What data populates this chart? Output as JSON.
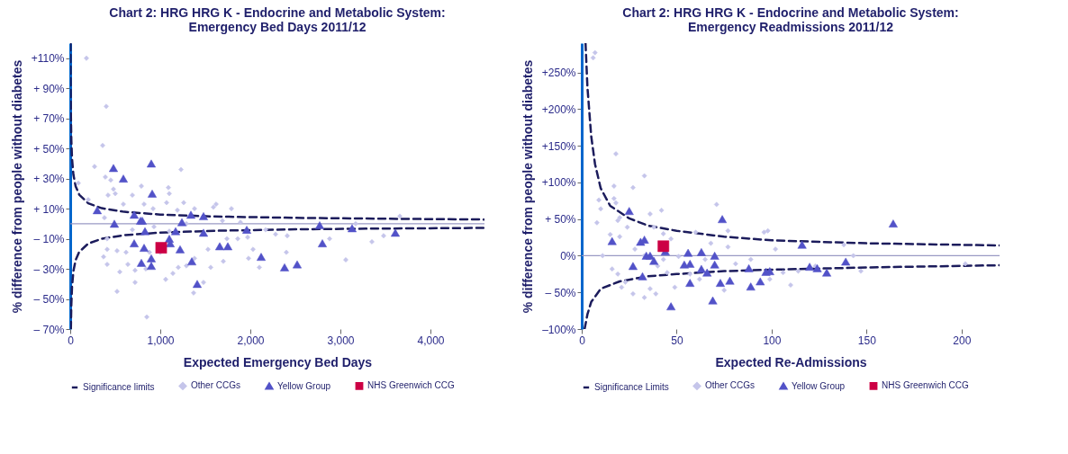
{
  "chart_data": [
    {
      "type": "scatter",
      "title": "Chart 2: HRG HRG K - Endocrine and Metabolic System:\nEmergency Bed Days 2011/12",
      "xlabel": "Expected Emergency Bed Days",
      "ylabel": "% difference from people without diabetes",
      "legend": "bottom",
      "xlim": [
        0,
        4600
      ],
      "xticks": [
        0,
        {
          "value": 1000,
          "label": "1,000"
        },
        {
          "value": 2000,
          "label": "2,000"
        },
        {
          "value": 3000,
          "label": "3,000"
        },
        {
          "value": 4000,
          "label": "4,000"
        }
      ],
      "ylim": [
        -70,
        120
      ],
      "yticks": [
        {
          "value": -70,
          "label": "– 70%"
        },
        {
          "value": -50,
          "label": "– 50%"
        },
        {
          "value": -30,
          "label": "– 30%"
        },
        {
          "value": -10,
          "label": "– 10%"
        },
        {
          "value": 10,
          "label": "+ 10%"
        },
        {
          "value": 30,
          "label": "+ 30%"
        },
        {
          "value": 50,
          "label": "+ 50%"
        },
        {
          "value": 70,
          "label": "+ 70%"
        },
        {
          "value": 90,
          "label": "+ 90%"
        },
        {
          "value": 110,
          "label": "+110%"
        }
      ],
      "ref_lines": [
        {
          "axis": "y",
          "value": 0,
          "color": "#9a9ac4"
        }
      ],
      "series": [
        {
          "name": "Significance limits",
          "type": "line",
          "line_style": "dashed",
          "color": "#1c1c5c",
          "x": [
            2.6,
            4,
            7,
            12,
            20,
            35,
            60,
            100,
            200,
            350,
            600,
            1000,
            1600,
            2500,
            3500,
            4600
          ],
          "values": [
            120,
            96.5,
            73,
            55.7,
            43.2,
            32.6,
            24.9,
            19.3,
            13.6,
            10.3,
            7.9,
            6.1,
            4.8,
            3.9,
            3.3,
            2.8
          ]
        },
        {
          "type": "line",
          "line_style": "dashed",
          "color": "#1c1c5c",
          "x": [
            7.2,
            12,
            20,
            35,
            60,
            100,
            200,
            350,
            600,
            1000,
            1600,
            2500,
            3500,
            4600
          ],
          "values": [
            -70,
            -54,
            -41.8,
            -31.6,
            -24.1,
            -18.7,
            -13.2,
            -10,
            -7.6,
            -5.9,
            -4.7,
            -3.7,
            -3.2,
            -2.8
          ]
        },
        {
          "name": "Other CCGs",
          "type": "scatter",
          "marker": "diamond",
          "color": "#c5c5ea",
          "x": [
            180,
            400,
            360,
            270,
            390,
            450,
            480,
            500,
            420,
            380,
            200,
            90,
            590,
            690,
            790,
            820,
            920,
            1090,
            1100,
            1070,
            1230,
            1260,
            1190,
            1380,
            1620,
            1590,
            1790,
            1890,
            1690,
            410,
            410,
            520,
            370,
            410,
            550,
            520,
            640,
            720,
            720,
            620,
            850,
            840,
            880,
            1000,
            1060,
            1140,
            1200,
            1290,
            1370,
            1480,
            1380,
            1530,
            1560,
            1700,
            1740,
            1860,
            1970,
            1980,
            2030,
            2100,
            2170,
            2280,
            2410,
            2400,
            2880,
            3060,
            3350,
            3480,
            3660,
            3170,
            1100,
            930,
            690,
            1290
          ],
          "values": [
            110,
            78,
            52,
            38,
            31,
            29,
            23,
            20,
            19,
            4,
            16,
            27,
            13,
            19,
            25,
            13,
            10,
            24,
            20,
            14,
            36,
            14,
            9,
            10,
            13,
            11,
            10,
            1,
            2,
            -10,
            -17,
            -18,
            -22,
            -27,
            -32,
            -45,
            -27,
            -39,
            -31,
            -19,
            -62,
            -30,
            -19,
            -19,
            -37,
            -33,
            -29,
            -28,
            -46,
            -39,
            -23,
            -17,
            -29,
            -25,
            -10,
            -10,
            -9,
            -23,
            -17,
            -29,
            -4,
            -7,
            -8,
            -19,
            -10,
            -24,
            -12,
            -8,
            5,
            0,
            -5,
            -2,
            -4,
            0
          ]
        },
        {
          "name": "Yellow Group",
          "type": "scatter",
          "marker": "triangle",
          "color": "#5252c8",
          "x": [
            300,
            480,
            590,
            490,
            710,
            780,
            800,
            830,
            710,
            820,
            790,
            900,
            910,
            900,
            900,
            1100,
            1110,
            1170,
            1220,
            1240,
            1340,
            1350,
            1410,
            1480,
            1480,
            1660,
            1750,
            1960,
            2120,
            2380,
            2520,
            2770,
            2800,
            3130,
            3610
          ],
          "values": [
            9,
            37,
            30,
            0,
            6,
            2,
            2,
            -5,
            -13,
            -16,
            -26,
            40,
            20,
            -23,
            -28,
            -10,
            -13,
            -5,
            -17,
            1,
            6,
            -25,
            -40,
            5,
            -6,
            -15,
            -15,
            -4,
            -22,
            -29,
            -27,
            -1,
            -13,
            -3,
            -6
          ]
        },
        {
          "name": "NHS Greenwich CCG",
          "type": "scatter",
          "marker": "square",
          "color": "#cc0044",
          "x": [
            1010
          ],
          "values": [
            -16
          ]
        }
      ]
    },
    {
      "type": "scatter",
      "title": "Chart 2: HRG HRG K - Endocrine and Metabolic System:\nEmergency Readmissions 2011/12",
      "xlabel": "Expected Re-Admissions",
      "ylabel": "% difference from people without diabetes",
      "legend": "bottom",
      "xlim": [
        0,
        220
      ],
      "xticks": [
        0,
        50,
        100,
        150,
        200
      ],
      "ylim": [
        -100,
        290
      ],
      "yticks": [
        {
          "value": -100,
          "label": "–100%"
        },
        {
          "value": -50,
          "label": "– 50%"
        },
        {
          "value": 0,
          "label": "0%"
        },
        {
          "value": 50,
          "label": "+ 50%"
        },
        {
          "value": 100,
          "label": "+100%"
        },
        {
          "value": 150,
          "label": "+150%"
        },
        {
          "value": 200,
          "label": "+200%"
        },
        {
          "value": 250,
          "label": "+250%"
        }
      ],
      "ref_lines": [
        {
          "axis": "y",
          "value": 0,
          "color": "#9a9ac4"
        }
      ],
      "series": [
        {
          "name": "Significance Limits",
          "type": "line",
          "line_style": "dashed",
          "color": "#1c1c5c",
          "x": [
            2,
            3,
            5,
            7,
            10,
            15,
            25,
            35,
            50,
            75,
            100,
            150,
            220
          ],
          "values": [
            290,
            230,
            163,
            125,
            92,
            68,
            51,
            41,
            34,
            26,
            21,
            17,
            14
          ]
        },
        {
          "type": "line",
          "line_style": "dashed",
          "color": "#1c1c5c",
          "x": [
            1.5,
            3,
            5,
            10,
            20,
            35,
            50,
            75,
            100,
            150,
            220
          ],
          "values": [
            -100,
            -80,
            -63,
            -45,
            -35,
            -28,
            -25,
            -21,
            -19,
            -16,
            -13
          ]
        },
        {
          "name": "Other CCGs",
          "type": "scatter",
          "marker": "diamond",
          "color": "#c5c5ea",
          "x": [
            6,
            7,
            18,
            33,
            17,
            27,
            9,
            10,
            8,
            17,
            18,
            20,
            19,
            24,
            20,
            15,
            11,
            16,
            19,
            21,
            23,
            27,
            33,
            39,
            36,
            36,
            42,
            38,
            43,
            47,
            40,
            45,
            49,
            51,
            60,
            57,
            62,
            65,
            68,
            71,
            77,
            77,
            75,
            81,
            89,
            96,
            98,
            102,
            99,
            106,
            110,
            114,
            123,
            143,
            138,
            147,
            202,
            33,
            43,
            28
          ],
          "values": [
            270,
            277,
            139,
            109,
            95,
            93,
            76,
            64,
            45,
            78,
            72,
            52,
            48,
            39,
            26,
            29,
            0,
            -18,
            -25,
            -43,
            -36,
            -52,
            -57,
            -52,
            -45,
            57,
            62,
            39,
            30,
            23,
            -14,
            -23,
            -43,
            -1,
            32,
            -25,
            -32,
            -5,
            17,
            70,
            34,
            12,
            -47,
            -11,
            -5,
            32,
            34,
            9,
            -32,
            -23,
            -40,
            -21,
            -14,
            0,
            15,
            -21,
            -11,
            0,
            -5,
            9
          ]
        },
        {
          "name": "Yellow Group",
          "type": "scatter",
          "marker": "triangle",
          "color": "#5252c8",
          "x": [
            16,
            25,
            27,
            31,
            33,
            34,
            36,
            38,
            32,
            44,
            54,
            56,
            57,
            57,
            63,
            63,
            66,
            69,
            70,
            70,
            73,
            74,
            78,
            88,
            89,
            94,
            97,
            99,
            47,
            116,
            120,
            124,
            129,
            139,
            164
          ],
          "values": [
            20,
            61,
            -14,
            19,
            22,
            0,
            0,
            -7,
            -28,
            6,
            -12,
            4,
            -11,
            -37,
            5,
            -18,
            -23,
            -61,
            0,
            -12,
            -37,
            50,
            -34,
            -17,
            -42,
            -35,
            -22,
            -21,
            -69,
            15,
            -15,
            -17,
            -23,
            -8,
            44
          ]
        },
        {
          "name": "NHS Greenwich CCG",
          "type": "scatter",
          "marker": "square",
          "color": "#cc0044",
          "x": [
            43
          ],
          "values": [
            13
          ]
        }
      ]
    }
  ]
}
